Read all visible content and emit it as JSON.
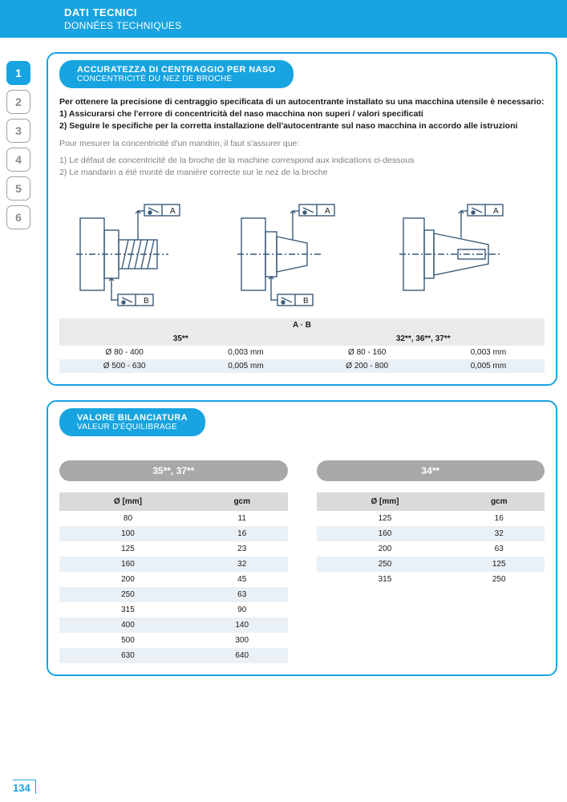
{
  "header": {
    "title_it": "DATI TECNICI",
    "title_fr": "DONNÉES TECHNIQUES"
  },
  "tabs": {
    "items": [
      "1",
      "2",
      "3",
      "4",
      "5",
      "6"
    ],
    "active_index": 0
  },
  "section1": {
    "pill_it": "ACCURATEZZA DI CENTRAGGIO PER NASO",
    "pill_fr": "CONCENTRICITÉ DU NEZ DE BROCHE",
    "intro_it": "Per ottenere la precisione di centraggio specificata di un autocentrante installato su una macchina utensile è necessario:",
    "li1_it": "1)  Assicurarsi che l'errore di concentricità del naso macchina non superi / valori specificati",
    "li2_it": "2)  Seguire le specifiche per la corretta installazione dell'autocentrante sul naso macchina in accordo alle istruzioni",
    "intro_fr": "Pour mesurer la concentricité d'un mandrin, il faut s'assurer que:",
    "li1_fr": "1)  Le défaut de concentricité de la broche de la machine correspond aux indications ci-dessous",
    "li2_fr": "2)  Le mandarin a été monté de manière correcte sur le nez de la broche",
    "table": {
      "header_top": "A · B",
      "col1": "35**",
      "col2": "32**, 36**, 37**",
      "rows": [
        {
          "a1": "Ø 80 - 400",
          "a2": "0,003 mm",
          "b1": "Ø 80 - 160",
          "b2": "0,003 mm"
        },
        {
          "a1": "Ø 500 - 630",
          "a2": "0,005 mm",
          "b1": "Ø 200 - 800",
          "b2": "0,005 mm"
        }
      ]
    },
    "diagram": {
      "label_a": "A",
      "label_b": "B",
      "stroke": "#3a5a7a",
      "fill": "#ffffff"
    }
  },
  "section2": {
    "pill_it": "VALORE BILANCIATURA",
    "pill_fr": "VALEUR D'ÉQUILIBRAGE",
    "left": {
      "header": "35**, 37**",
      "col1": "Ø [mm]",
      "col2": "gcm",
      "rows": [
        {
          "d": "80",
          "g": "11"
        },
        {
          "d": "100",
          "g": "16"
        },
        {
          "d": "125",
          "g": "23"
        },
        {
          "d": "160",
          "g": "32"
        },
        {
          "d": "200",
          "g": "45"
        },
        {
          "d": "250",
          "g": "63"
        },
        {
          "d": "315",
          "g": "90"
        },
        {
          "d": "400",
          "g": "140"
        },
        {
          "d": "500",
          "g": "300"
        },
        {
          "d": "630",
          "g": "640"
        }
      ]
    },
    "right": {
      "header": "34**",
      "col1": "Ø [mm]",
      "col2": "gcm",
      "rows": [
        {
          "d": "125",
          "g": "16"
        },
        {
          "d": "160",
          "g": "32"
        },
        {
          "d": "200",
          "g": "63"
        },
        {
          "d": "250",
          "g": "125"
        },
        {
          "d": "315",
          "g": "250"
        }
      ]
    }
  },
  "page_number": "134",
  "colors": {
    "brand": "#17a4e0",
    "grey_pill": "#a8a8a8",
    "th_grey": "#d9dada",
    "row_alt": "#eaf1f6",
    "hdr_grey": "#e9eaea",
    "diagram_stroke": "#3a5a7a"
  }
}
